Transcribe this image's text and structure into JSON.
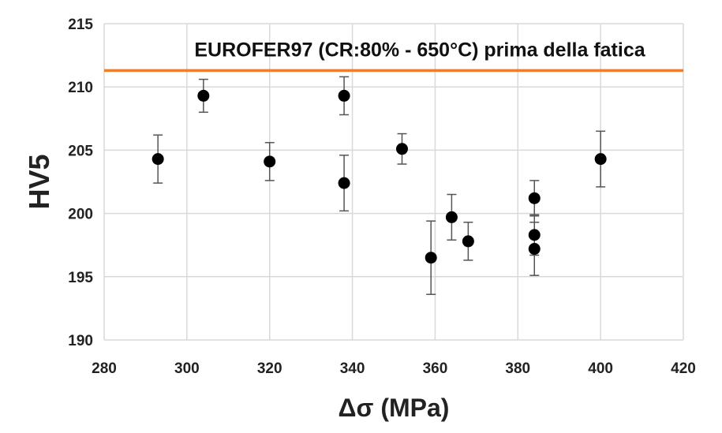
{
  "chart_data": {
    "type": "scatter",
    "title": "",
    "xlabel": "Δσ (MPa)",
    "ylabel": "HV5",
    "xlim": [
      280,
      420
    ],
    "ylim": [
      190,
      215
    ],
    "x_ticks": [
      "280",
      "300",
      "320",
      "340",
      "360",
      "380",
      "400",
      "420"
    ],
    "y_ticks": [
      "190",
      "195",
      "200",
      "205",
      "210",
      "215"
    ],
    "grid": true,
    "series": [
      {
        "marker_color": "#000000",
        "points": [
          {
            "x": 293,
            "y": 204.3,
            "err_low": 202.4,
            "err_high": 206.2
          },
          {
            "x": 304,
            "y": 209.3,
            "err_low": 208.0,
            "err_high": 210.6
          },
          {
            "x": 320,
            "y": 204.1,
            "err_low": 202.6,
            "err_high": 205.6
          },
          {
            "x": 338,
            "y": 209.3,
            "err_low": 207.8,
            "err_high": 210.8
          },
          {
            "x": 338,
            "y": 202.4,
            "err_low": 200.2,
            "err_high": 204.6
          },
          {
            "x": 352,
            "y": 205.1,
            "err_low": 203.9,
            "err_high": 206.3
          },
          {
            "x": 359,
            "y": 196.5,
            "err_low": 193.6,
            "err_high": 199.4
          },
          {
            "x": 364,
            "y": 199.7,
            "err_low": 197.9,
            "err_high": 201.5
          },
          {
            "x": 368,
            "y": 197.8,
            "err_low": 196.3,
            "err_high": 199.3
          },
          {
            "x": 384,
            "y": 201.2,
            "err_low": 199.8,
            "err_high": 202.6
          },
          {
            "x": 384,
            "y": 198.3,
            "err_low": 196.7,
            "err_high": 199.9
          },
          {
            "x": 384,
            "y": 197.2,
            "err_low": 195.1,
            "err_high": 199.3
          },
          {
            "x": 400,
            "y": 204.3,
            "err_low": 202.1,
            "err_high": 206.5
          }
        ]
      }
    ],
    "reference_line": {
      "y": 211.3,
      "label": "EUROFER97 (CR:80% - 650°C) prima della fatica",
      "color": "#ED7D31"
    },
    "grid_color": "#D9D9D9"
  }
}
